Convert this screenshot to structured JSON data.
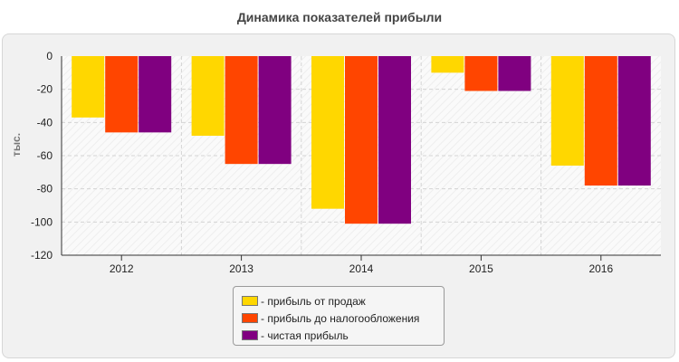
{
  "chart_data": {
    "type": "bar",
    "title": "Динамика показателей прибыли",
    "ylabel": "тыс.",
    "xlabel": "",
    "categories": [
      "2012",
      "2013",
      "2014",
      "2015",
      "2016"
    ],
    "series": [
      {
        "name": "прибыль от продаж",
        "color": "#ffd700",
        "values": [
          -37,
          -48,
          -92,
          -10,
          -66
        ]
      },
      {
        "name": "прибыль до налогообложения",
        "color": "#ff4500",
        "values": [
          -46,
          -65,
          -101,
          -21,
          -78
        ]
      },
      {
        "name": "чистая прибыль",
        "color": "#800080",
        "values": [
          -46,
          -65,
          -101,
          -21,
          -78
        ]
      }
    ],
    "ylim": [
      -120,
      0
    ],
    "yticks": [
      0,
      -20,
      -40,
      -60,
      -80,
      -100,
      -120
    ],
    "grid": true,
    "legend_position": "bottom"
  },
  "legend": {
    "items": [
      {
        "label": "- прибыль от продаж",
        "color": "#ffd700"
      },
      {
        "label": "- прибыль до налогообложения",
        "color": "#ff4500"
      },
      {
        "label": "- чистая прибыль",
        "color": "#800080"
      }
    ]
  }
}
